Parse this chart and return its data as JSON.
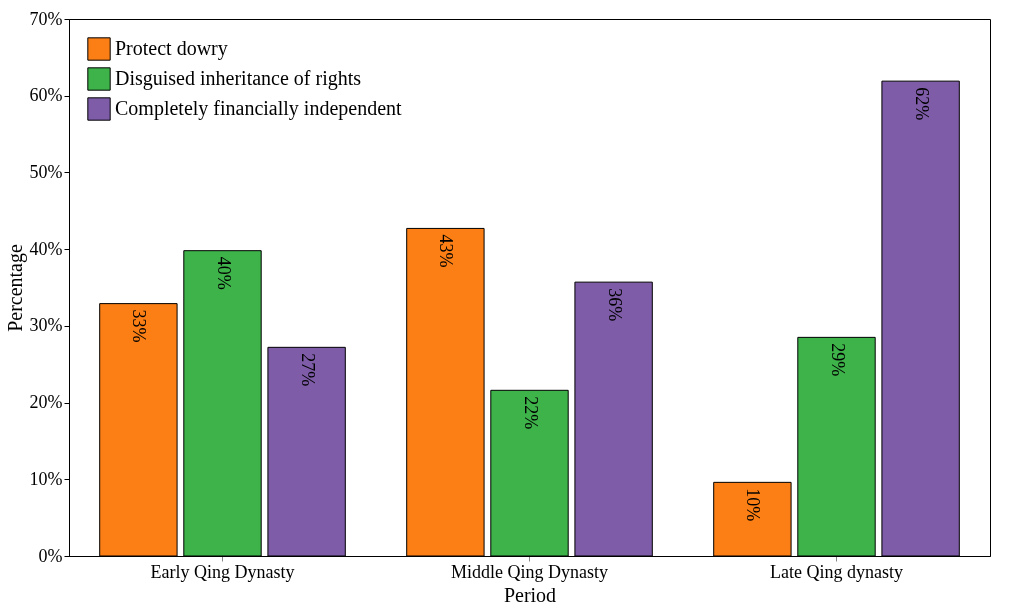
{
  "chart_data": {
    "type": "bar",
    "xlabel": "Period",
    "ylabel": "Percentage",
    "categories": [
      "Early Qing Dynasty",
      "Middle Qing Dynasty",
      "Late Qing dynasty"
    ],
    "series": [
      {
        "name": "Protect dowry",
        "color": "#fb7f14",
        "values": [
          32.9,
          42.7,
          9.6
        ],
        "value_labels": [
          "33%",
          "43%",
          "10%"
        ]
      },
      {
        "name": "Disguised inheritance of rights",
        "color": "#3db34a",
        "values": [
          39.8,
          21.6,
          28.5
        ],
        "value_labels": [
          "40%",
          "22%",
          "29%"
        ]
      },
      {
        "name": "Completely financially independent",
        "color": "#7e5ca8",
        "values": [
          27.2,
          35.7,
          61.9
        ],
        "value_labels": [
          "27%",
          "36%",
          "62%"
        ]
      }
    ],
    "ylim": [
      0,
      70
    ],
    "yticks": [
      {
        "value": 0,
        "label": "0%"
      },
      {
        "value": 10,
        "label": "10%"
      },
      {
        "value": 20,
        "label": "20%"
      },
      {
        "value": 30,
        "label": "30%"
      },
      {
        "value": 40,
        "label": "40%"
      },
      {
        "value": 50,
        "label": "50%"
      },
      {
        "value": 60,
        "label": "60%"
      },
      {
        "value": 70,
        "label": "70%"
      }
    ],
    "grid": false,
    "legend": "top left"
  }
}
